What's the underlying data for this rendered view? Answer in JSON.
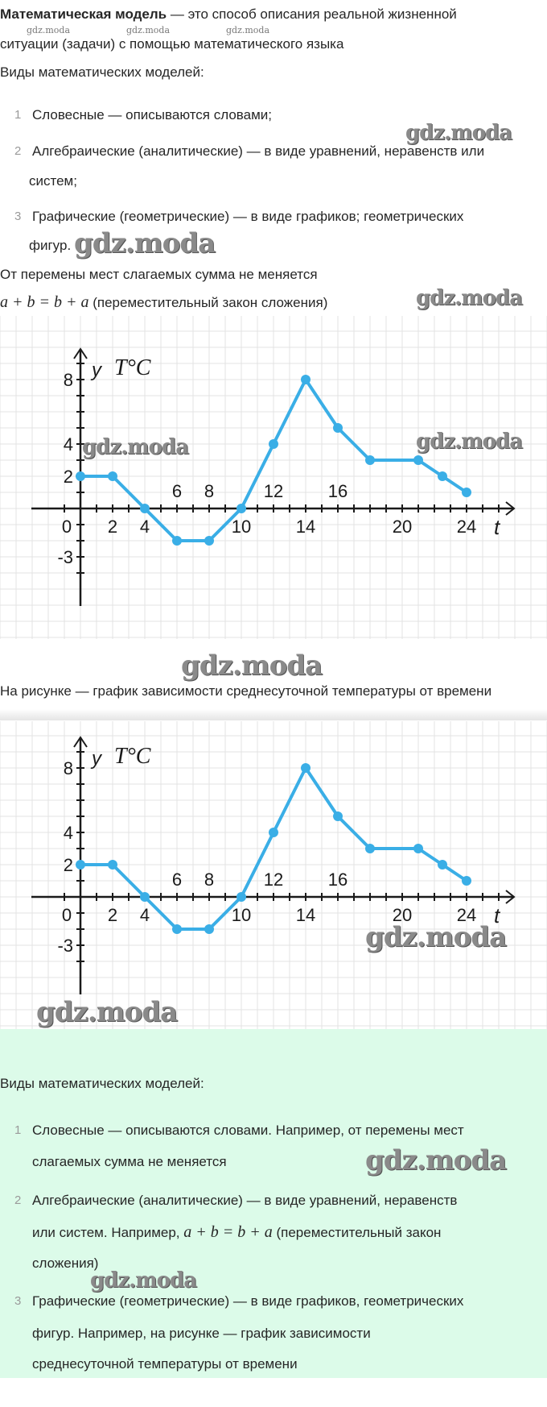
{
  "watermark": "gdz.moda",
  "intro": {
    "term": "Математическая модель",
    "definition_line1": " — это способ описания реальной жизненной",
    "definition_line2": "ситуации (задачи) с помощью математического языка"
  },
  "types_heading": "Виды математических моделей:",
  "types": [
    {
      "num": "1",
      "lines": [
        "Словесные — описываются словами;"
      ]
    },
    {
      "num": "2",
      "lines": [
        "Алгебраические (аналитические) — в виде уравнений, неравенств или",
        "систем;"
      ]
    },
    {
      "num": "3",
      "lines": [
        "Графические (геометрические) — в виде графиков; геометрических",
        "фигур."
      ]
    }
  ],
  "example_text": "От перемены мест слагаемых сумма не меняется",
  "formula": "a + b = b + a",
  "formula_note": " (переместительный закон сложения)",
  "caption": "На рисунке — график зависимости среднесуточной температуры от времени",
  "answer": {
    "heading": "Виды математических моделей:",
    "items": [
      {
        "num": "1",
        "lines": [
          "Словесные — описываются словами. Например, от перемены мест",
          "слагаемых сумма не меняется"
        ]
      },
      {
        "num": "2",
        "line1": "Алгебраические (аналитические) — в виде уравнений, неравенств",
        "line2_prefix": "или систем. Например, ",
        "formula": "a + b = b + a",
        "line2_suffix": " (переместительный закон",
        "line3": "сложения)"
      },
      {
        "num": "3",
        "lines": [
          "Графические (геометрические) — в виде графиков, геометрических",
          "фигур. Например, на рисунке — график зависимости",
          "среднесуточной температуры от времени"
        ]
      }
    ]
  },
  "colors": {
    "line": "#3aaee6",
    "grid": "#e3e3e3",
    "answer_bg": "#dcfbe9",
    "text": "#262626"
  },
  "chart_data": [
    {
      "type": "line",
      "ylabel_var": "y",
      "ylabel": "T°C",
      "xlabel": "t",
      "x": [
        0,
        2,
        4,
        6,
        8,
        10,
        12,
        14,
        16,
        18,
        21,
        22.5,
        24
      ],
      "y": [
        2,
        2,
        0,
        -2,
        -2,
        0,
        4,
        8,
        5,
        3,
        3,
        2,
        1
      ],
      "x_tick_labels": [
        "0",
        "2",
        "4",
        "6",
        "8",
        "10",
        "12",
        "14",
        "16",
        "20",
        "24"
      ],
      "y_tick_labels": [
        "8",
        "4",
        "2",
        "-3"
      ],
      "xlim": [
        -3,
        27
      ],
      "ylim": [
        -6,
        10
      ],
      "grid": true
    },
    {
      "type": "line",
      "ylabel_var": "y",
      "ylabel": "T°C",
      "xlabel": "t",
      "x": [
        0,
        2,
        4,
        6,
        8,
        10,
        12,
        14,
        16,
        18,
        21,
        22.5,
        24
      ],
      "y": [
        2,
        2,
        0,
        -2,
        -2,
        0,
        4,
        8,
        5,
        3,
        3,
        2,
        1
      ],
      "x_tick_labels": [
        "0",
        "2",
        "4",
        "6",
        "8",
        "10",
        "12",
        "14",
        "16",
        "20",
        "24"
      ],
      "y_tick_labels": [
        "8",
        "4",
        "2",
        "-3"
      ],
      "xlim": [
        -3,
        27
      ],
      "ylim": [
        -6,
        10
      ],
      "grid": true
    }
  ]
}
